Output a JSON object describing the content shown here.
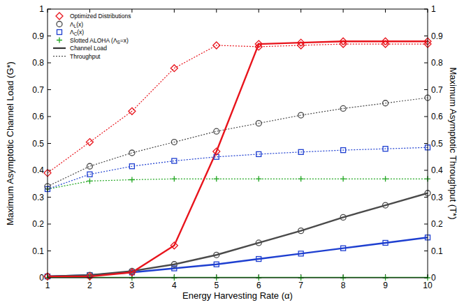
{
  "chart_data": {
    "type": "line",
    "x_label": "Energy Harvesting Rate (α)",
    "y_label": "Maximum Asymptotic Channel Load (G*)",
    "y2_label": "Maximum Asymptotic Throughput (T*)",
    "x": [
      1,
      2,
      3,
      4,
      5,
      6,
      7,
      8,
      9,
      10
    ],
    "xlim": [
      1,
      10
    ],
    "xticks": [
      1,
      2,
      3,
      4,
      5,
      6,
      7,
      8,
      9,
      10
    ],
    "ylim": [
      0,
      1
    ],
    "yticks": [
      0,
      0.1,
      0.2,
      0.3,
      0.4,
      0.5,
      0.6,
      0.7,
      0.8,
      0.9,
      1
    ],
    "y2lim": [
      0,
      1
    ],
    "y2ticks": [
      0,
      0.1,
      0.2,
      0.3,
      0.4,
      0.5,
      0.6,
      0.7,
      0.8,
      0.9,
      1
    ],
    "legend": "upper left",
    "line_style_legend": [
      {
        "line_style": "solid",
        "label": "Channel Load"
      },
      {
        "line_style": "dotted",
        "label": "Throughput"
      }
    ],
    "series": [
      {
        "name": "Optimized Distributions",
        "color": "#e8141c",
        "marker": "diamond",
        "line_style": "solid",
        "values": [
          0.005,
          0.005,
          0.02,
          0.12,
          0.47,
          0.87,
          0.875,
          0.88,
          0.88,
          0.88
        ]
      },
      {
        "name": "ΛL(x)",
        "color": "#4a4a4a",
        "marker": "circle",
        "line_style": "solid",
        "values": [
          0.005,
          0.01,
          0.025,
          0.05,
          0.085,
          0.13,
          0.175,
          0.225,
          0.27,
          0.315
        ]
      },
      {
        "name": "ΛC(x)",
        "color": "#1e3fd0",
        "marker": "square",
        "line_style": "solid",
        "values": [
          0.005,
          0.01,
          0.02,
          0.035,
          0.05,
          0.07,
          0.09,
          0.11,
          0.13,
          0.15
        ]
      },
      {
        "name": "Slotted ALOHA (ΛS=x)",
        "color": "#22a722",
        "marker": "plus",
        "line_style": "solid",
        "values": [
          0,
          0,
          0,
          0,
          0,
          0,
          0,
          0,
          0,
          0
        ]
      },
      {
        "name": "Optimized Distributions",
        "color": "#e8141c",
        "marker": "diamond",
        "line_style": "dotted",
        "axis": "y2",
        "values": [
          0.39,
          0.505,
          0.62,
          0.78,
          0.865,
          0.86,
          0.865,
          0.87,
          0.87,
          0.87
        ]
      },
      {
        "name": "ΛL(x)",
        "color": "#4a4a4a",
        "marker": "circle",
        "line_style": "dotted",
        "axis": "y2",
        "values": [
          0.34,
          0.415,
          0.465,
          0.505,
          0.545,
          0.575,
          0.605,
          0.63,
          0.65,
          0.67
        ]
      },
      {
        "name": "ΛC(x)",
        "color": "#1e3fd0",
        "marker": "square",
        "line_style": "dotted",
        "axis": "y2",
        "values": [
          0.33,
          0.385,
          0.415,
          0.435,
          0.45,
          0.46,
          0.468,
          0.475,
          0.48,
          0.485
        ]
      },
      {
        "name": "Slotted ALOHA (ΛS=x)",
        "color": "#22a722",
        "marker": "plus",
        "line_style": "dotted",
        "axis": "y2",
        "values": [
          0.33,
          0.36,
          0.365,
          0.368,
          0.368,
          0.368,
          0.368,
          0.368,
          0.368,
          0.368
        ]
      }
    ]
  }
}
